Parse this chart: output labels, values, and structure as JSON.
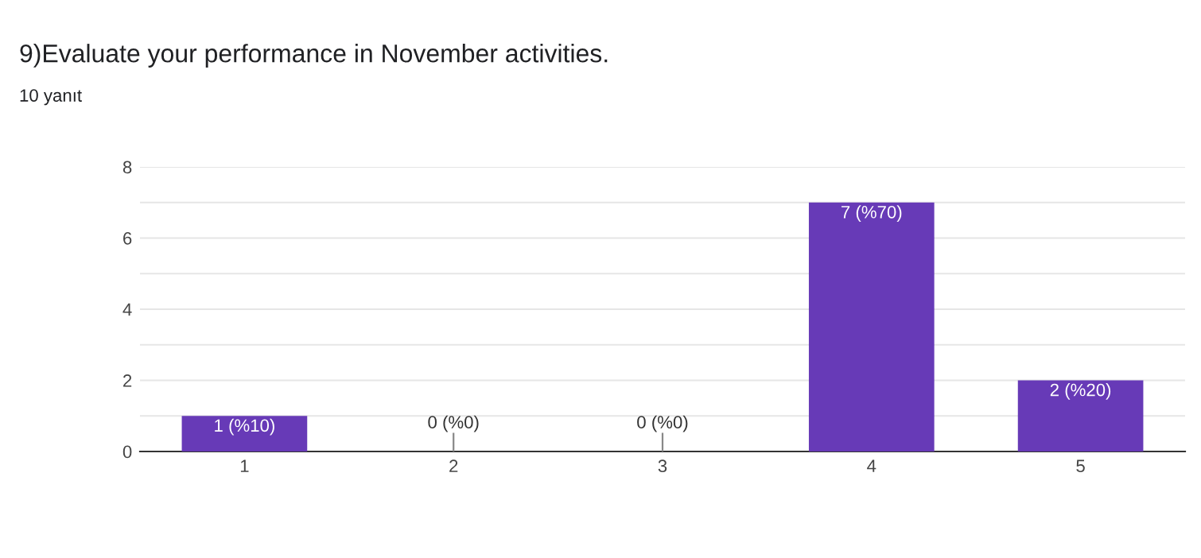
{
  "chart_data": {
    "type": "bar",
    "title": "9)Evaluate your performance in November activities.",
    "subtitle": "10 yanıt",
    "categories": [
      "1",
      "2",
      "3",
      "4",
      "5"
    ],
    "values": [
      1,
      0,
      0,
      7,
      2
    ],
    "value_labels": [
      "1 (%10)",
      "0 (%0)",
      "0 (%0)",
      "7 (%70)",
      "2 (%20)"
    ],
    "color": "#673ab7",
    "ylim": [
      0,
      8
    ],
    "yticks": [
      0,
      {
        "value": 1,
        "label": null
      },
      2,
      {
        "value": 3,
        "label": null
      },
      4,
      {
        "value": 5,
        "label": null
      },
      6,
      {
        "value": 7,
        "label": null
      },
      8
    ],
    "grid": "y",
    "legend": false
  }
}
